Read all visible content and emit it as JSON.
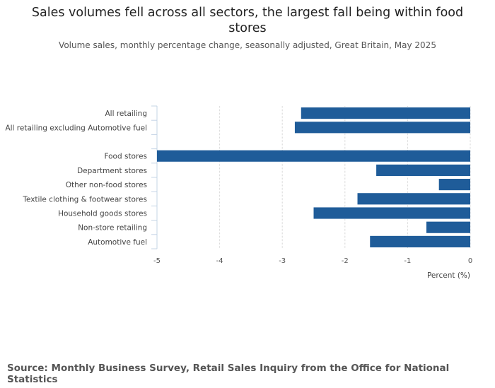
{
  "chart_data": {
    "type": "bar",
    "orientation": "horizontal",
    "title": "Sales volumes fell across all sectors, the largest fall being within food stores",
    "subtitle": "Volume sales, monthly percentage change, seasonally adjusted, Great Britain, May 2025",
    "xlabel": "Percent (%)",
    "ylabel": "",
    "xlim": [
      -5,
      0
    ],
    "xticks": [
      "-5",
      "-4",
      "-3",
      "-2",
      "-1",
      "0"
    ],
    "grid": true,
    "categories": [
      "All retailing",
      "All retailing excluding Automotive fuel",
      "",
      "Food stores",
      "Department stores",
      "Other non-food stores",
      "Textile clothing & footwear stores",
      "Household goods stores",
      "Non-store retailing",
      "Automotive fuel"
    ],
    "values": [
      -2.7,
      -2.8,
      null,
      -5.0,
      -1.5,
      -0.5,
      -1.8,
      -2.5,
      -0.7,
      -1.6
    ],
    "bar_color": "#1f5c99"
  },
  "source": "Source: Monthly Business Survey, Retail Sales Inquiry from the Office for National Statistics"
}
